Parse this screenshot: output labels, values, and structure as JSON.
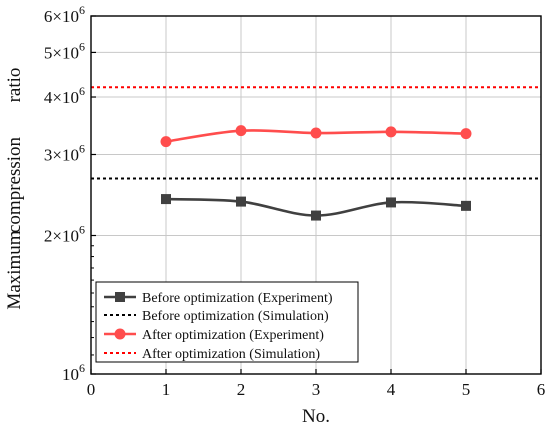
{
  "chart_data": {
    "type": "line",
    "xlabel": "No.",
    "ylabel_words": [
      "Maximum",
      "compression",
      "ratio"
    ],
    "xlim": [
      0,
      6
    ],
    "ylim": [
      1000000,
      6000000
    ],
    "yscale": "log",
    "grid": true,
    "legend_position": "bottom-left",
    "x_ticks": [
      {
        "value": 0,
        "label": "0"
      },
      {
        "value": 1,
        "label": "1"
      },
      {
        "value": 2,
        "label": "2"
      },
      {
        "value": 3,
        "label": "3"
      },
      {
        "value": 4,
        "label": "4"
      },
      {
        "value": 5,
        "label": "5"
      },
      {
        "value": 6,
        "label": "6"
      }
    ],
    "y_ticks": [
      {
        "value": 1000000,
        "base": "10",
        "exp": "6"
      },
      {
        "value": 2000000,
        "base": "2×10",
        "exp": "6"
      },
      {
        "value": 3000000,
        "base": "3×10",
        "exp": "6"
      },
      {
        "value": 4000000,
        "base": "4×10",
        "exp": "6"
      },
      {
        "value": 5000000,
        "base": "5×10",
        "exp": "6"
      },
      {
        "value": 6000000,
        "base": "6×10",
        "exp": "6"
      }
    ],
    "series": [
      {
        "name": "Before optimization (Experiment)",
        "kind": "line-markers",
        "marker": "square",
        "color": "#404040",
        "x": [
          1,
          2,
          3,
          4,
          5
        ],
        "y": [
          2400000,
          2370000,
          2210000,
          2360000,
          2320000
        ]
      },
      {
        "name": "Before optimization (Simulation)",
        "kind": "hline",
        "color": "#000000",
        "y": 2660000
      },
      {
        "name": "After optimization (Experiment)",
        "kind": "line-markers",
        "marker": "circle",
        "color": "#ff4d4d",
        "x": [
          1,
          2,
          3,
          4,
          5
        ],
        "y": [
          3200000,
          3380000,
          3340000,
          3360000,
          3330000
        ]
      },
      {
        "name": "After optimization (Simulation)",
        "kind": "hline",
        "color": "#ff0000",
        "y": 4200000
      }
    ]
  }
}
